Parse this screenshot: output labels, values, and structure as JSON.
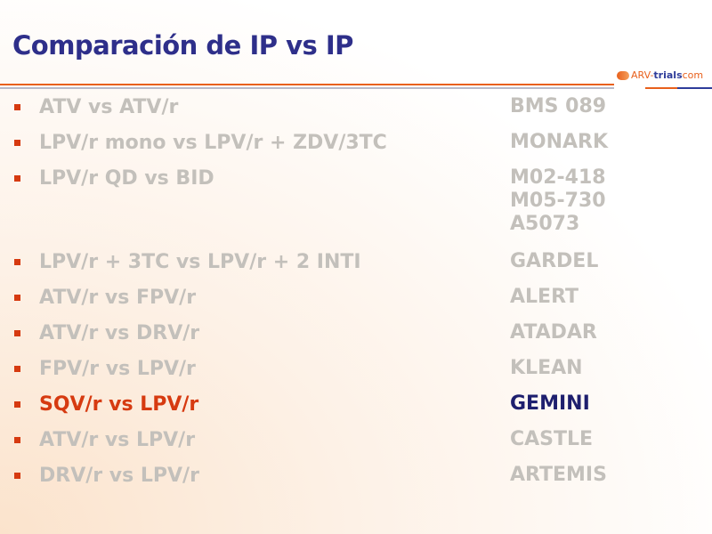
{
  "title": "Comparación de IP vs IP",
  "logo": {
    "part1": "ARV-",
    "part2": "trials",
    "part3": "com"
  },
  "colors": {
    "title": "#2e2f8a",
    "bullet": "#d63a10",
    "muted_text": "#c3c0bb",
    "highlight_label": "#d63a10",
    "highlight_study": "#1e1f6e"
  },
  "rows": [
    {
      "label": "ATV vs ATV/r",
      "studies": [
        "BMS 089"
      ]
    },
    {
      "label": "LPV/r mono vs LPV/r + ZDV/3TC",
      "studies": [
        "MONARK"
      ]
    },
    {
      "label": "LPV/r QD vs BID",
      "studies": [
        "M02-418",
        "M05-730",
        "A5073"
      ]
    },
    {
      "label": "LPV/r + 3TC vs LPV/r + 2 INTI",
      "studies": [
        "GARDEL"
      ]
    },
    {
      "label": "ATV/r vs FPV/r",
      "studies": [
        "ALERT"
      ]
    },
    {
      "label": "ATV/r vs DRV/r",
      "studies": [
        "ATADAR"
      ]
    },
    {
      "label": "FPV/r vs LPV/r",
      "studies": [
        "KLEAN"
      ]
    },
    {
      "label": "SQV/r vs LPV/r",
      "studies": [
        "GEMINI"
      ],
      "highlighted": true
    },
    {
      "label": "ATV/r vs LPV/r",
      "studies": [
        "CASTLE"
      ]
    },
    {
      "label": "DRV/r vs LPV/r",
      "studies": [
        "ARTEMIS"
      ]
    }
  ]
}
